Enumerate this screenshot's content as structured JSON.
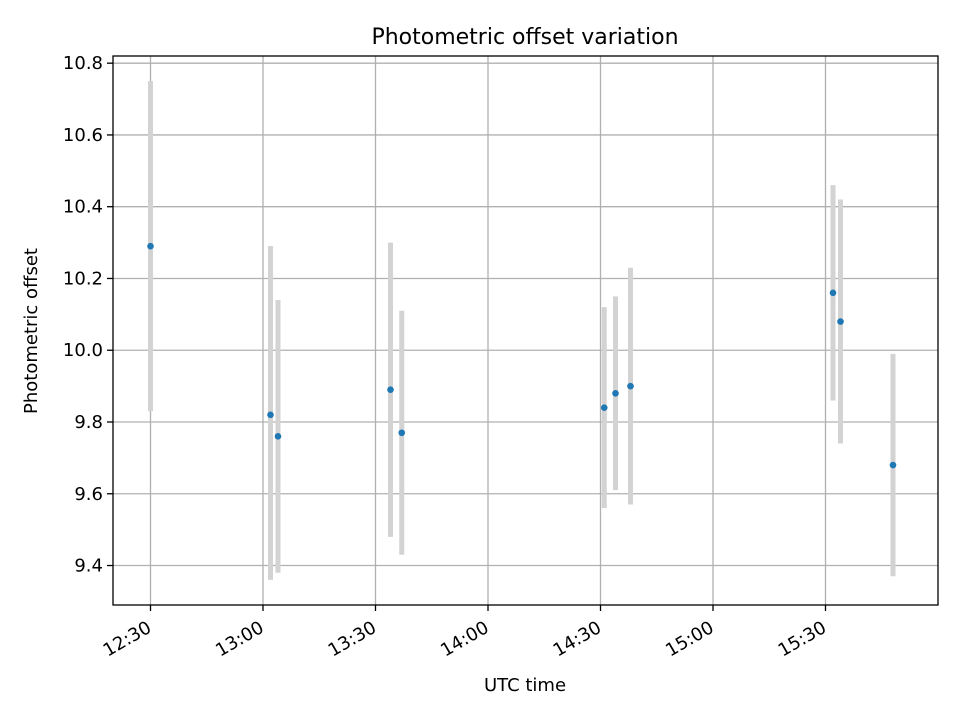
{
  "chart_data": {
    "type": "scatter",
    "title": "Photometric offset variation",
    "xlabel": "UTC time",
    "ylabel": "Photometric offset",
    "xlim": [
      "12:20",
      "16:00"
    ],
    "ylim": [
      9.29,
      10.82
    ],
    "x_ticks": [
      "12:30",
      "13:00",
      "13:30",
      "14:00",
      "14:30",
      "15:00",
      "15:30"
    ],
    "y_ticks": [
      "9.4",
      "9.6",
      "9.8",
      "10.0",
      "10.2",
      "10.4",
      "10.6",
      "10.8"
    ],
    "grid": true,
    "marker_color": "#1f77b4",
    "errorbar_color": "#d3d3d3",
    "series": [
      {
        "points": [
          {
            "x": "12:30",
            "y": 10.29,
            "ylow": 9.83,
            "yhigh": 10.75
          },
          {
            "x": "13:02",
            "y": 9.82,
            "ylow": 9.36,
            "yhigh": 10.29
          },
          {
            "x": "13:04",
            "y": 9.76,
            "ylow": 9.38,
            "yhigh": 10.14
          },
          {
            "x": "13:34",
            "y": 9.89,
            "ylow": 9.48,
            "yhigh": 10.3
          },
          {
            "x": "13:37",
            "y": 9.77,
            "ylow": 9.43,
            "yhigh": 10.11
          },
          {
            "x": "14:31",
            "y": 9.84,
            "ylow": 9.56,
            "yhigh": 10.12
          },
          {
            "x": "14:34",
            "y": 9.88,
            "ylow": 9.61,
            "yhigh": 10.15
          },
          {
            "x": "14:38",
            "y": 9.9,
            "ylow": 9.57,
            "yhigh": 10.23
          },
          {
            "x": "15:32",
            "y": 10.16,
            "ylow": 9.86,
            "yhigh": 10.46
          },
          {
            "x": "15:34",
            "y": 10.08,
            "ylow": 9.74,
            "yhigh": 10.42
          },
          {
            "x": "15:48",
            "y": 9.68,
            "ylow": 9.37,
            "yhigh": 9.99
          }
        ]
      }
    ]
  }
}
